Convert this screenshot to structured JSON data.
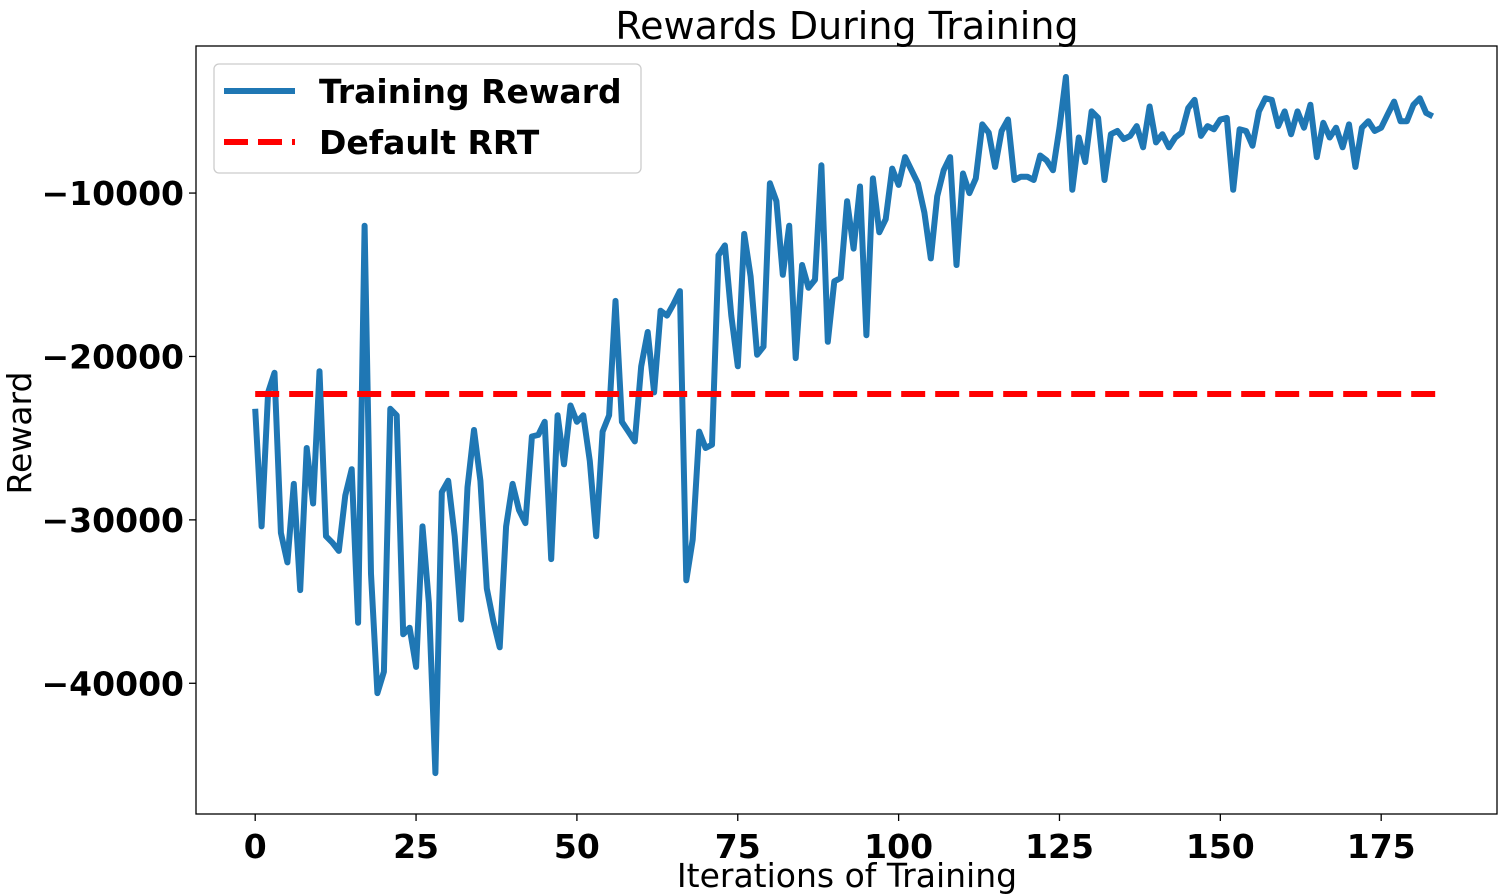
{
  "chart_data": {
    "type": "line",
    "title": "Rewards During Training",
    "xlabel": "Iterations of Training",
    "ylabel": "Reward",
    "xlim": [
      -9.2,
      193
    ],
    "ylim": [
      -48000,
      -1000
    ],
    "xticks": [
      0,
      25,
      50,
      75,
      100,
      125,
      150,
      175
    ],
    "yticks": [
      -40000,
      -30000,
      -20000,
      -10000
    ],
    "ytick_labels": [
      "−40000",
      "−30000",
      "−20000",
      "−10000"
    ],
    "grid": false,
    "legend_position": "top-left",
    "series": [
      {
        "name": "Training Reward",
        "color": "#1f77b4",
        "style": "solid",
        "values": [
          -23200,
          -30400,
          -22200,
          -21000,
          -30800,
          -32600,
          -27800,
          -34300,
          -25600,
          -29000,
          -20900,
          -31000,
          -31400,
          -31900,
          -28500,
          -26900,
          -36300,
          -12000,
          -33300,
          -40600,
          -39300,
          -23200,
          -23600,
          -37000,
          -36600,
          -39000,
          -30400,
          -35100,
          -45500,
          -28300,
          -27600,
          -31000,
          -36100,
          -28000,
          -24500,
          -27600,
          -34200,
          -36200,
          -37800,
          -30400,
          -27800,
          -29400,
          -30200,
          -24900,
          -24800,
          -24000,
          -32400,
          -23600,
          -26600,
          -23000,
          -24000,
          -23600,
          -26400,
          -31000,
          -24600,
          -23600,
          -16600,
          -24000,
          -24600,
          -25200,
          -20600,
          -18500,
          -22200,
          -17200,
          -17500,
          -16800,
          -16000,
          -33700,
          -31200,
          -24600,
          -25600,
          -25400,
          -13800,
          -13200,
          -17500,
          -20600,
          -12500,
          -15100,
          -19900,
          -19400,
          -9400,
          -10500,
          -15000,
          -12000,
          -20100,
          -14400,
          -15800,
          -15300,
          -8300,
          -19100,
          -15400,
          -15200,
          -10500,
          -13400,
          -9600,
          -18700,
          -9100,
          -12400,
          -11600,
          -8500,
          -9500,
          -7800,
          -8600,
          -9400,
          -11200,
          -14000,
          -10200,
          -8600,
          -7800,
          -14400,
          -8800,
          -10000,
          -9100,
          -5800,
          -6300,
          -8400,
          -6200,
          -5500,
          -9200,
          -9000,
          -9000,
          -9200,
          -7700,
          -8000,
          -8600,
          -6000,
          -2900,
          -9800,
          -6600,
          -8100,
          -5000,
          -5400,
          -9200,
          -6400,
          -6200,
          -6700,
          -6500,
          -5900,
          -7200,
          -4700,
          -6900,
          -6400,
          -7200,
          -6600,
          -6300,
          -4800,
          -4300,
          -6500,
          -5900,
          -6100,
          -5500,
          -5400,
          -9800,
          -6100,
          -6200,
          -7100,
          -5000,
          -4200,
          -4300,
          -5900,
          -5000,
          -6400,
          -5000,
          -6000,
          -4600,
          -7800,
          -5700,
          -6600,
          -6000,
          -7200,
          -5800,
          -8400,
          -6000,
          -5600,
          -6200,
          -6000,
          -5200,
          -4400,
          -5600,
          -5600,
          -4600,
          -4200,
          -5100,
          -5300
        ]
      },
      {
        "name": "Default RRT",
        "color": "#ff0000",
        "style": "dashed",
        "values": [
          -22300,
          -22300
        ],
        "x": [
          0,
          184
        ]
      }
    ]
  }
}
